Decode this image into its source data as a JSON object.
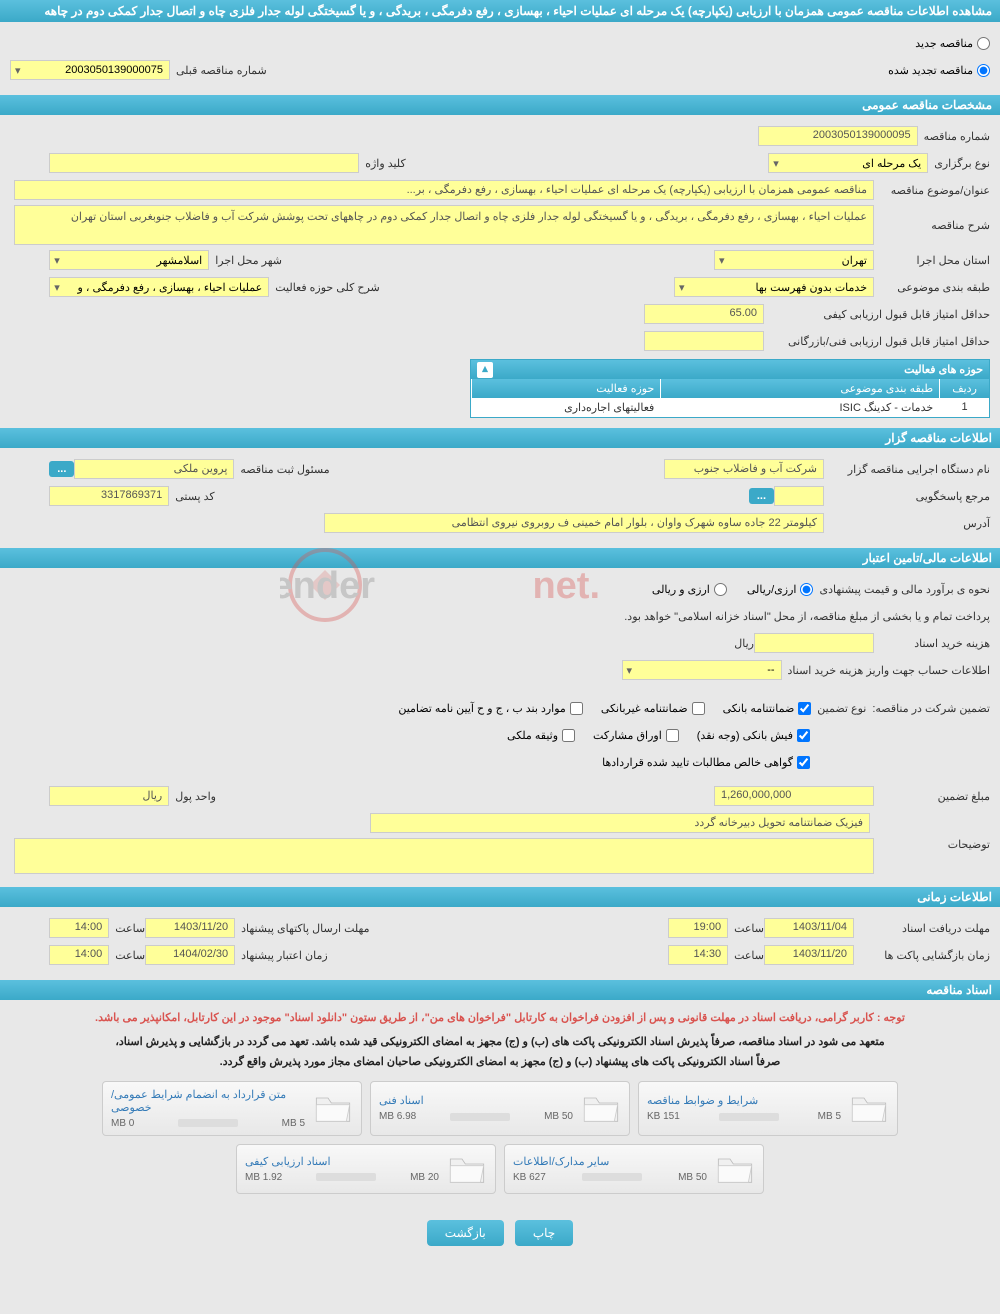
{
  "header": {
    "title": "مشاهده اطلاعات مناقصه عمومی همزمان با ارزیابی (یکپارچه) یک مرحله ای عملیات احیاء ، بهسازی ، رفع دفرمگی ، بریدگی ، و یا گسیختگی لوله جدار فلزی چاه و اتصال جدار کمکی دوم در چاهه"
  },
  "tender_type": {
    "new_label": "مناقصه جدید",
    "renewed_label": "مناقصه تجدید شده",
    "prev_num_label": "شماره مناقصه قبلی",
    "prev_num_value": "2003050139000075"
  },
  "general": {
    "section_title": "مشخصات مناقصه عمومی",
    "tender_num_label": "شماره مناقصه",
    "tender_num_value": "2003050139000095",
    "holding_type_label": "نوع برگزاری",
    "holding_type_value": "یک مرحله ای",
    "keyword_label": "کلید واژه",
    "keyword_value": "",
    "subject_label": "عنوان/موضوع مناقصه",
    "subject_value": "مناقصه عمومی همزمان با ارزیابی (یکپارچه) یک مرحله ای عملیات احیاء ، بهسازی ، رفع دفرمگی ، بر...",
    "desc_label": "شرح مناقصه",
    "desc_value": "عملیات احیاء ، بهسازی ، رفع دفرمگی ، بریدگی ، و یا گسیختگی لوله جدار فلزی چاه و اتصال جدار کمکی دوم در چاههای تحت پوشش شرکت آب و فاضلاب جنوبغربی استان تهران",
    "province_label": "استان محل اجرا",
    "province_value": "تهران",
    "city_label": "شهر محل اجرا",
    "city_value": "اسلامشهر",
    "category_label": "طبقه بندی موضوعی",
    "category_value": "خدمات بدون فهرست بها",
    "activity_scope_label": "شرح کلی حوزه فعالیت",
    "activity_scope_value": "عملیات احیاء ، بهسازی ، رفع دفرمگی ، و",
    "min_quality_label": "حداقل امتیاز قابل قبول ارزیابی کیفی",
    "min_quality_value": "65.00",
    "min_tech_label": "حداقل امتیاز قابل قبول ارزیابی فنی/بازرگانی",
    "min_tech_value": ""
  },
  "activities_table": {
    "title": "حوزه های فعالیت",
    "col_row": "ردیف",
    "col_category": "طبقه بندی موضوعی",
    "col_activity": "حوزه فعالیت",
    "rows": [
      {
        "idx": "1",
        "category": "خدمات - کدینگ ISIC",
        "activity": "فعالیتهای اجاره‌داری"
      }
    ]
  },
  "organizer": {
    "section_title": "اطلاعات مناقصه گزار",
    "org_name_label": "نام دستگاه اجرایی مناقصه گزار",
    "org_name_value": "شرکت آب و فاضلاب جنوب ",
    "registrar_label": "مسئول ثبت مناقصه",
    "registrar_value": "پروین  ملکی",
    "responder_label": "مرجع پاسخگویی",
    "responder_value": "",
    "postal_label": "کد پستی",
    "postal_value": "3317869371",
    "address_label": "آدرس",
    "address_value": "کیلومتر 22 جاده ساوه شهرک واوان ، بلوار امام خمینی ف روبروی نیروی انتظامی"
  },
  "financial": {
    "section_title": "اطلاعات مالی/تامین اعتبار",
    "estimation_label": "نحوه ی برآورد مالی و قیمت پیشنهادی",
    "opt_rial": "ارزی/ریالی",
    "opt_currency": "ارزی و ریالی",
    "payment_note": "پرداخت تمام و یا بخشی از مبلغ مناقصه، از محل \"اسناد خزانه اسلامی\" خواهد بود.",
    "doc_cost_label": "هزینه خرید اسناد",
    "doc_cost_unit": "ریال",
    "account_label": "اطلاعات حساب جهت واریز هزینه خرید اسناد",
    "account_value": "--",
    "guarantee_label": "تضمین شرکت در مناقصه:",
    "guarantee_type_label": "نوع تضمین",
    "chk_bank_guarantee": "ضمانتنامه بانکی",
    "chk_nonbank_guarantee": "ضمانتنامه غیربانکی",
    "chk_items": "موارد بند ب ، ج و ح آیین نامه تضامین",
    "chk_bank_receipt": "فیش بانکی (وجه نقد)",
    "chk_securities": "اوراق مشارکت",
    "chk_property": "وثیقه ملکی",
    "chk_claims": "گواهی خالص مطالبات تایید شده قراردادها",
    "guarantee_amount_label": "مبلغ تضمین",
    "guarantee_amount_value": "1,260,000,000",
    "currency_unit_label": "واحد پول",
    "currency_unit_value": "ریال",
    "physical_note": "فیزیک ضمانتنامه تحویل دبیرخانه گردد",
    "notes_label": "توضیحات"
  },
  "timing": {
    "section_title": "اطلاعات زمانی",
    "receive_deadline_label": "مهلت دریافت اسناد",
    "receive_deadline_date": "1403/11/04",
    "receive_deadline_time": "19:00",
    "send_deadline_label": "مهلت ارسال پاکتهای پیشنهاد",
    "send_deadline_date": "1403/11/20",
    "send_deadline_time": "14:00",
    "opening_label": "زمان بازگشایی پاکت ها",
    "opening_date": "1403/11/20",
    "opening_time": "14:30",
    "validity_label": "زمان اعتبار پیشنهاد",
    "validity_date": "1404/02/30",
    "validity_time": "14:00",
    "time_label": "ساعت"
  },
  "documents": {
    "section_title": "اسناد مناقصه",
    "note_red": "توجه : کاربر گرامی، دریافت اسناد در مهلت قانونی و پس از افزودن فراخوان به کارتابل \"فراخوان های من\"، از طریق ستون \"دانلود اسناد\" موجود در این کارتابل، امکانپذیر می باشد.",
    "note_black1": "متعهد می شود در اسناد مناقصه، صرفاً پذیرش اسناد الکترونیکی پاکت های (ب) و (ج) مجهز به امضای الکترونیکی قید شده باشد. تعهد می گردد در بازگشایی و پذیرش اسناد،",
    "note_black2": "صرفاً اسناد الکترونیکی پاکت های پیشنهاد (ب) و (ج) مجهز به امضای الکترونیکی صاحبان امضای مجاز مورد پذیرش واقع گردد.",
    "cards": [
      {
        "title": "شرایط و ضوابط مناقصه",
        "size": "151 KB",
        "limit": "5 MB",
        "progress": 5
      },
      {
        "title": "اسناد فنی",
        "size": "6.98 MB",
        "limit": "50 MB",
        "progress": 15
      },
      {
        "title": "متن قرارداد به انضمام شرایط عمومی/خصوصی",
        "size": "0 MB",
        "limit": "5 MB",
        "progress": 0
      },
      {
        "title": "سایر مدارک/اطلاعات",
        "size": "627 KB",
        "limit": "50 MB",
        "progress": 3
      },
      {
        "title": "اسناد ارزیابی کیفی",
        "size": "1.92 MB",
        "limit": "20 MB",
        "progress": 12
      }
    ]
  },
  "buttons": {
    "print": "چاپ",
    "back": "بازگشت"
  },
  "colors": {
    "header_bg": "#3ba9c8",
    "field_bg": "#ffff99",
    "page_bg": "#e8e8e8",
    "note_red": "#d9534f",
    "link_blue": "#337ab7",
    "progress_green": "#5cb85c"
  }
}
